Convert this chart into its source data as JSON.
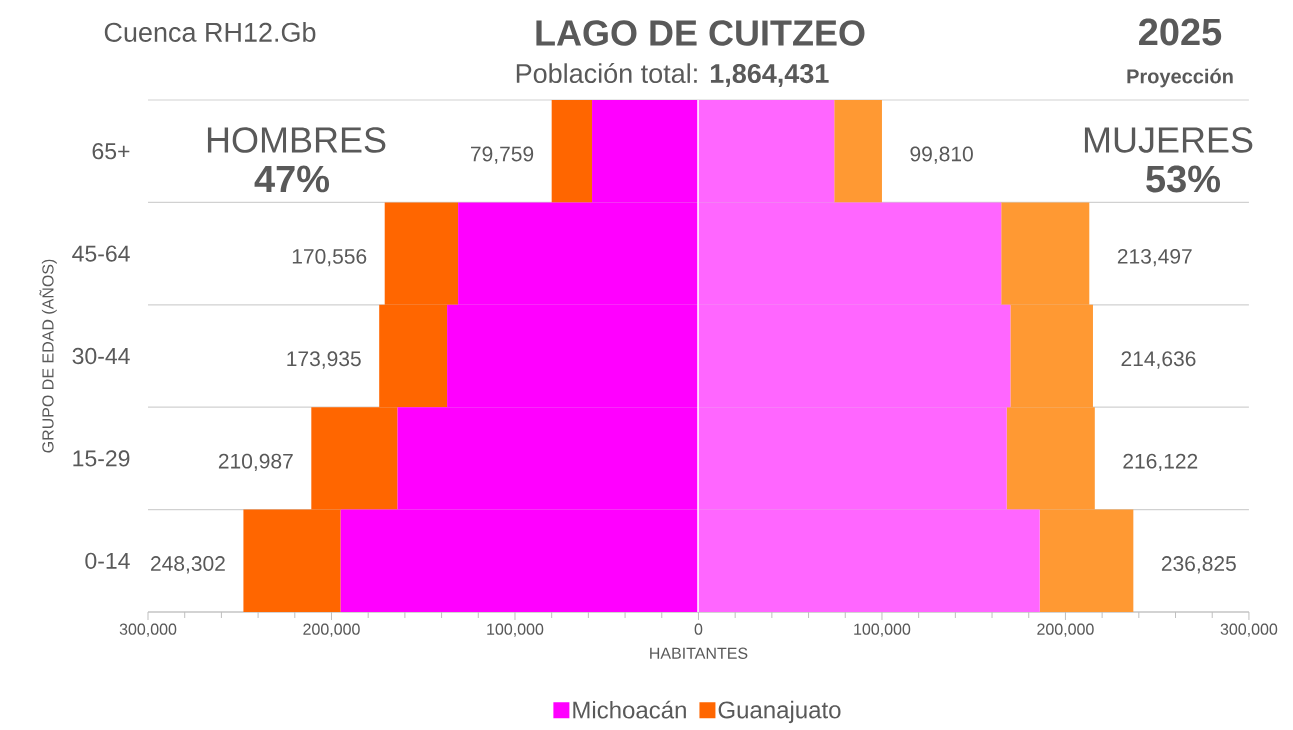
{
  "chart_data": {
    "type": "bar",
    "orientation": "horizontal",
    "stacked": true,
    "title": "LAGO DE CUITZEO",
    "subtitle": "Población total: **1,864,431**",
    "annotations": [
      "Cuenca RH12.Gb",
      "2025",
      "Proyección",
      "HOMBRES",
      "47%",
      "MUJERES",
      "53%"
    ],
    "xlabel": "HABITANTES",
    "ylabel": "GRUPO DE EDAD (AÑOS)",
    "categories": [
      "65+",
      "45-64",
      "30-44",
      "15-29",
      "0-14"
    ],
    "series": [
      {
        "name": "Michoacán",
        "color": "#ff00ff",
        "values": [
          -58000,
          -131000,
          -137000,
          -164000,
          -195000
        ]
      },
      {
        "name": "Guanajuato",
        "color": "#ff6600",
        "values": [
          -22000,
          -40000,
          -37000,
          -47000,
          -53000
        ]
      },
      {
        "color": "#ff66ff",
        "values": [
          74000,
          165000,
          170000,
          168000,
          186000
        ]
      },
      {
        "color": "#ff9933",
        "values": [
          26000,
          48000,
          45000,
          48000,
          51000
        ]
      }
    ],
    "totals": [
      [
        "79,759",
        "99,810"
      ],
      [
        "170,556",
        "213,497"
      ],
      [
        "173,935",
        "214,636"
      ],
      [
        "210,987",
        "216,122"
      ],
      [
        "248,302",
        "236,825"
      ]
    ],
    "xlim": [
      -300000,
      300000
    ],
    "xticks": [
      {
        "value": -300000,
        "label": "300,000"
      },
      {
        "value": -200000,
        "label": "200,000"
      },
      {
        "value": -100000,
        "label": "100,000"
      },
      0,
      {
        "value": 100000,
        "label": "100,000"
      },
      {
        "value": 200000,
        "label": "200,000"
      },
      {
        "value": 300000,
        "label": "300,000"
      }
    ],
    "grid": "y",
    "legend": "bottom"
  }
}
